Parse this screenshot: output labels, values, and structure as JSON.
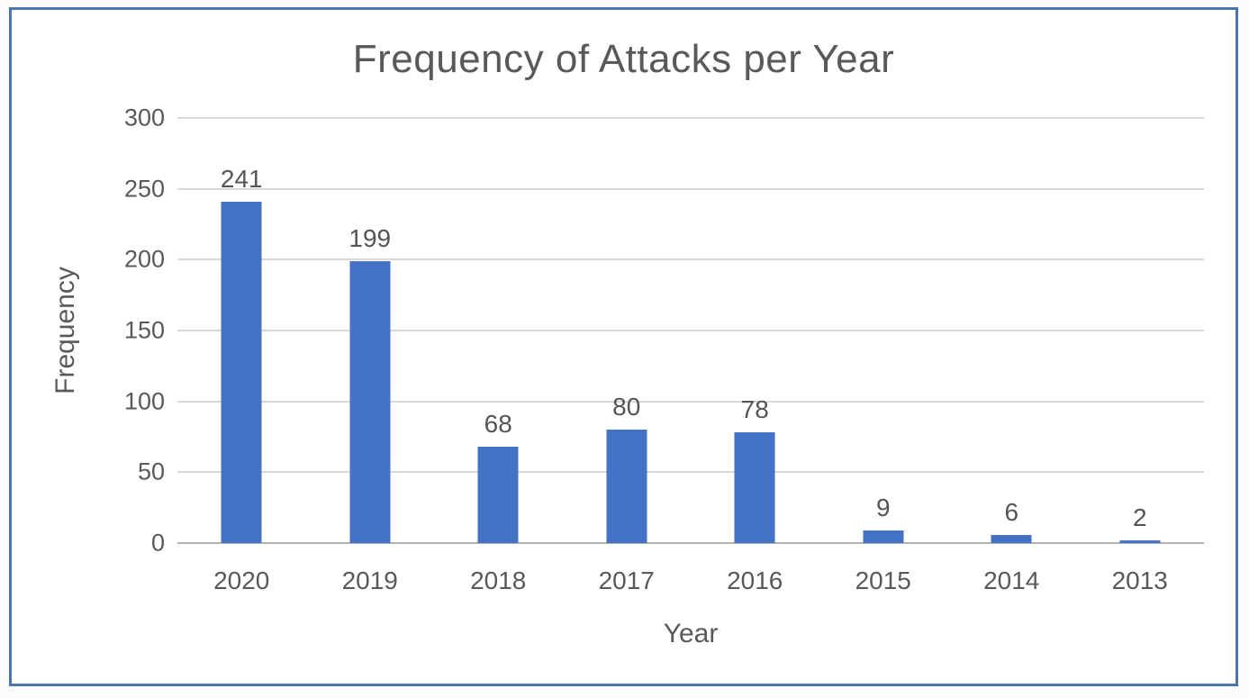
{
  "chart_data": {
    "type": "bar",
    "title": "Frequency of Attacks per Year",
    "xlabel": "Year",
    "ylabel": "Frequency",
    "categories": [
      "2020",
      "2019",
      "2018",
      "2017",
      "2016",
      "2015",
      "2014",
      "2013"
    ],
    "values": [
      241,
      199,
      68,
      80,
      78,
      9,
      6,
      2
    ],
    "data_labels": [
      "241",
      "199",
      "68",
      "80",
      "78",
      "9",
      "6",
      "2"
    ],
    "ylim": [
      0,
      300
    ],
    "yticks": [
      0,
      50,
      100,
      150,
      200,
      250,
      300
    ],
    "grid": true,
    "legend": false,
    "bar_color": "#4472C4"
  },
  "colors": {
    "bar_fill": "#4472C4",
    "frame_border": "#4E74AD",
    "gridline": "#D9D9D9",
    "axis_line": "#B3B3B3",
    "text": "#595959"
  }
}
